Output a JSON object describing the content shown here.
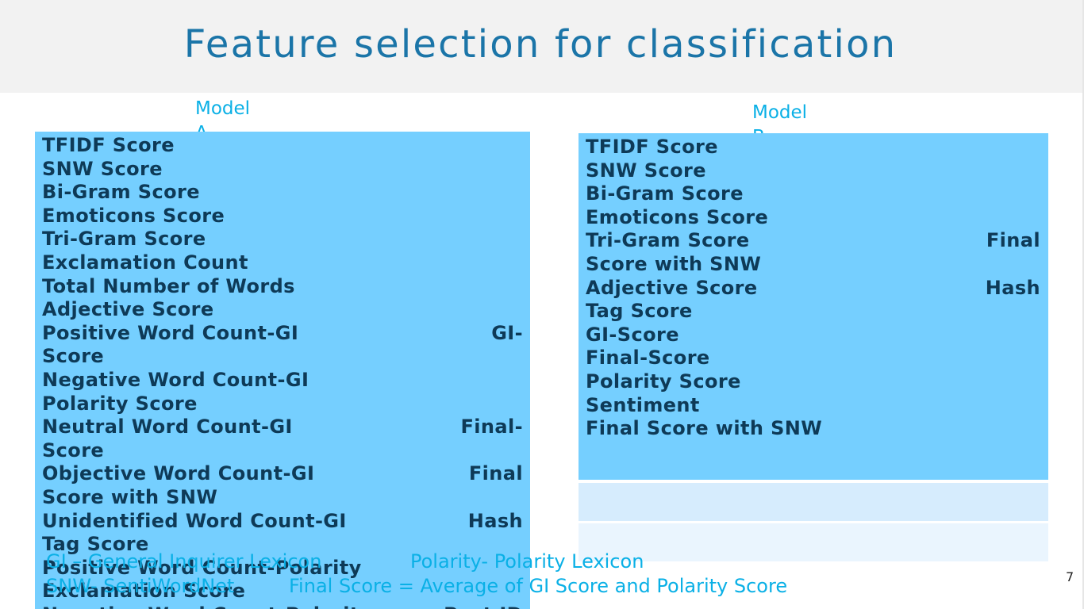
{
  "slide": {
    "title": "Feature selection for classification",
    "page_number": "7"
  },
  "model_a": {
    "label": "Model\nA",
    "lines": [
      {
        "left": "TFIDF Score",
        "right": ""
      },
      {
        "left": "SNW Score",
        "right": ""
      },
      {
        "left": "Bi-Gram Score",
        "right": ""
      },
      {
        "left": "Emoticons Score",
        "right": ""
      },
      {
        "left": "Tri-Gram Score",
        "right": ""
      },
      {
        "left": "Exclamation Count",
        "right": ""
      },
      {
        "left": "Total Number of Words",
        "right": ""
      },
      {
        "left": "Adjective Score",
        "right": ""
      },
      {
        "left": "Positive Word Count-GI",
        "right": "GI-"
      },
      {
        "left": "Score",
        "right": ""
      },
      {
        "left": "Negative Word Count-GI",
        "right": ""
      },
      {
        "left": "Polarity Score",
        "right": ""
      },
      {
        "left": "Neutral Word Count-GI",
        "right": "Final-"
      },
      {
        "left": "Score",
        "right": ""
      },
      {
        "left": "Objective Word Count-GI",
        "right": "Final"
      },
      {
        "left": "Score with SNW",
        "right": ""
      },
      {
        "left": "Unidentified Word Count-GI",
        "right": "Hash"
      },
      {
        "left": "Tag Score",
        "right": ""
      },
      {
        "left": "Positive Word Count-Polarity",
        "right": ""
      },
      {
        "left": "Exclamation Score",
        "right": ""
      },
      {
        "left": "Negative Word Count-Polarity",
        "right": "Post ID"
      }
    ]
  },
  "model_b": {
    "label": "Model\nB",
    "lines": [
      {
        "left": "TFIDF Score",
        "right": ""
      },
      {
        "left": "SNW Score",
        "right": ""
      },
      {
        "left": "Bi-Gram Score",
        "right": ""
      },
      {
        "left": "Emoticons Score",
        "right": ""
      },
      {
        "left": "Tri-Gram Score",
        "right": "Final"
      },
      {
        "left": "Score with SNW",
        "right": ""
      },
      {
        "left": "Adjective Score",
        "right": "Hash"
      },
      {
        "left": "Tag Score",
        "right": ""
      },
      {
        "left": "GI-Score",
        "right": ""
      },
      {
        "left": "Final-Score",
        "right": ""
      },
      {
        "left": "Polarity Score",
        "right": ""
      },
      {
        "left": "Sentiment",
        "right": ""
      },
      {
        "left": "Final Score with SNW",
        "right": ""
      }
    ]
  },
  "footnotes": {
    "gi": "GI – General Inquirer Lexicon",
    "polarity": "Polarity- Polarity Lexicon",
    "snw": "SNW- SentiWordNet",
    "final_score": "Final Score = Average of GI Score and Polarity Score"
  },
  "colors": {
    "title": "#1b75a8",
    "accent": "#0ab0e6",
    "box": "#75cfff",
    "box_text": "#0e3a57"
  }
}
